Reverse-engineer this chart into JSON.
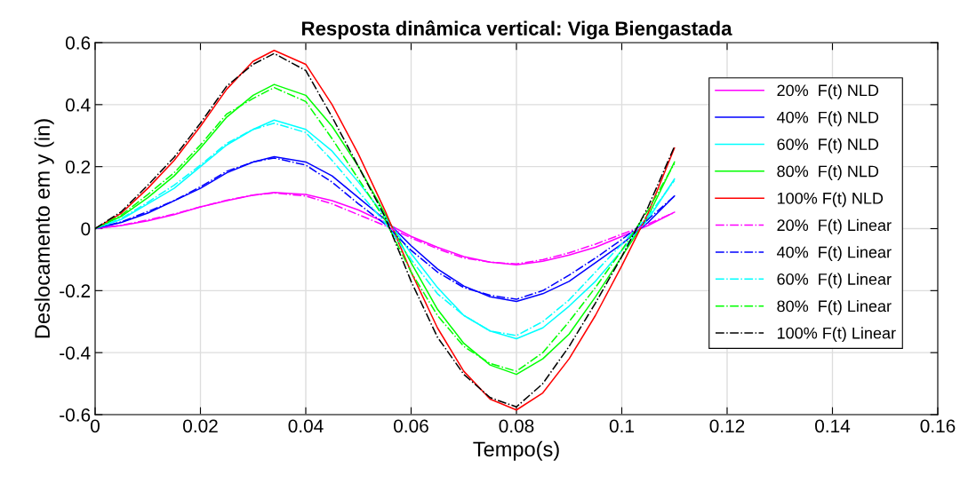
{
  "chart_data": {
    "type": "line",
    "title": "Resposta dinâmica vertical: Viga Biengastada",
    "xlabel": "Tempo(s)",
    "ylabel": "Deslocamento em y (in)",
    "x": [
      0,
      0.005,
      0.01,
      0.015,
      0.02,
      0.025,
      0.03,
      0.034,
      0.04,
      0.045,
      0.05,
      0.055,
      0.06,
      0.065,
      0.07,
      0.075,
      0.08,
      0.085,
      0.09,
      0.095,
      0.1,
      0.105,
      0.11
    ],
    "series": [
      {
        "name": "20%  F(t) NLD",
        "color": "#ff00ff",
        "line_style": "solid",
        "values": [
          0,
          0.01,
          0.025,
          0.045,
          0.07,
          0.09,
          0.108,
          0.117,
          0.11,
          0.09,
          0.06,
          0.02,
          -0.025,
          -0.06,
          -0.09,
          -0.108,
          -0.117,
          -0.105,
          -0.085,
          -0.06,
          -0.025,
          0.01,
          0.053
        ]
      },
      {
        "name": "40%  F(t) NLD",
        "color": "#0000ff",
        "line_style": "solid",
        "values": [
          0,
          0.02,
          0.05,
          0.09,
          0.13,
          0.18,
          0.215,
          0.232,
          0.215,
          0.17,
          0.1,
          0.03,
          -0.055,
          -0.13,
          -0.185,
          -0.22,
          -0.235,
          -0.21,
          -0.17,
          -0.11,
          -0.05,
          0.02,
          0.105
        ]
      },
      {
        "name": "60%  F(t) NLD",
        "color": "#00ffff",
        "line_style": "solid",
        "values": [
          0,
          0.03,
          0.08,
          0.13,
          0.2,
          0.27,
          0.32,
          0.35,
          0.32,
          0.25,
          0.15,
          0.04,
          -0.08,
          -0.19,
          -0.28,
          -0.33,
          -0.355,
          -0.32,
          -0.25,
          -0.17,
          -0.07,
          0.03,
          0.16
        ]
      },
      {
        "name": "80%  F(t) NLD",
        "color": "#00ff00",
        "line_style": "solid",
        "values": [
          0,
          0.04,
          0.1,
          0.17,
          0.26,
          0.36,
          0.43,
          0.465,
          0.43,
          0.33,
          0.2,
          0.05,
          -0.11,
          -0.26,
          -0.37,
          -0.44,
          -0.47,
          -0.42,
          -0.34,
          -0.22,
          -0.09,
          0.04,
          0.215
        ]
      },
      {
        "name": "100% F(t) NLD",
        "color": "#ff0000",
        "line_style": "solid",
        "values": [
          0,
          0.05,
          0.13,
          0.22,
          0.33,
          0.45,
          0.54,
          0.575,
          0.53,
          0.4,
          0.24,
          0.06,
          -0.14,
          -0.32,
          -0.46,
          -0.55,
          -0.585,
          -0.53,
          -0.42,
          -0.28,
          -0.12,
          0.05,
          0.26
        ]
      },
      {
        "name": "20%  F(t) Linear",
        "color": "#ff00ff",
        "line_style": "dashdot",
        "values": [
          0,
          0.011,
          0.028,
          0.047,
          0.07,
          0.092,
          0.108,
          0.115,
          0.105,
          0.08,
          0.045,
          0.01,
          -0.03,
          -0.065,
          -0.095,
          -0.108,
          -0.114,
          -0.1,
          -0.078,
          -0.05,
          -0.018,
          0.015,
          0.052
        ]
      },
      {
        "name": "40%  F(t) Linear",
        "color": "#0000ff",
        "line_style": "dashdot",
        "values": [
          0,
          0.022,
          0.055,
          0.09,
          0.135,
          0.185,
          0.215,
          0.228,
          0.205,
          0.15,
          0.08,
          0.015,
          -0.07,
          -0.14,
          -0.19,
          -0.215,
          -0.228,
          -0.2,
          -0.15,
          -0.095,
          -0.035,
          0.03,
          0.105
        ]
      },
      {
        "name": "60%  F(t) Linear",
        "color": "#00ffff",
        "line_style": "dashdot",
        "values": [
          0,
          0.033,
          0.085,
          0.14,
          0.205,
          0.275,
          0.32,
          0.34,
          0.31,
          0.22,
          0.12,
          0.02,
          -0.1,
          -0.21,
          -0.28,
          -0.33,
          -0.345,
          -0.3,
          -0.23,
          -0.14,
          -0.05,
          0.04,
          0.155
        ]
      },
      {
        "name": "80%  F(t) Linear",
        "color": "#00ff00",
        "line_style": "dashdot",
        "values": [
          0,
          0.044,
          0.11,
          0.18,
          0.27,
          0.37,
          0.42,
          0.455,
          0.41,
          0.29,
          0.16,
          0.03,
          -0.14,
          -0.28,
          -0.38,
          -0.435,
          -0.46,
          -0.4,
          -0.3,
          -0.19,
          -0.07,
          0.06,
          0.21
        ]
      },
      {
        "name": "100% F(t) Linear",
        "color": "#000000",
        "line_style": "dashdot",
        "values": [
          0,
          0.055,
          0.14,
          0.23,
          0.34,
          0.46,
          0.53,
          0.565,
          0.51,
          0.36,
          0.2,
          0.04,
          -0.17,
          -0.35,
          -0.47,
          -0.545,
          -0.575,
          -0.5,
          -0.38,
          -0.24,
          -0.09,
          0.07,
          0.265
        ]
      }
    ],
    "xlim": [
      0,
      0.16
    ],
    "xticks": [
      0,
      0.02,
      0.04,
      0.06,
      0.08,
      0.1,
      0.12,
      0.14,
      0.16
    ],
    "ylim": [
      -0.6,
      0.6
    ],
    "yticks": [
      -0.6,
      -0.4,
      -0.2,
      0,
      0.2,
      0.4,
      0.6
    ],
    "grid": true,
    "legend": "top right"
  }
}
